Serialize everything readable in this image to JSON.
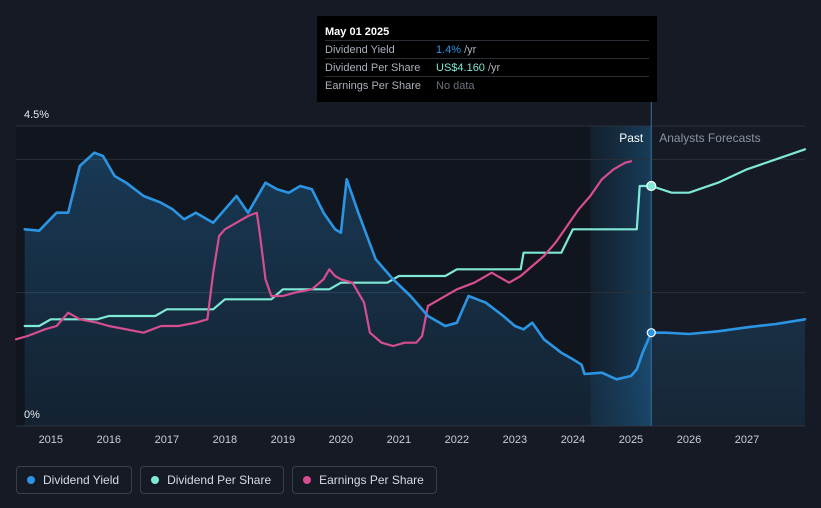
{
  "tooltip": {
    "date": "May 01 2025",
    "rows": [
      {
        "label": "Dividend Yield",
        "value": "1.4%",
        "unit": "/yr"
      },
      {
        "label": "Dividend Per Share",
        "value": "US$4.160",
        "unit": "/yr"
      },
      {
        "label": "Earnings Per Share",
        "value": "No data",
        "unit": ""
      }
    ]
  },
  "legend": [
    {
      "label": "Dividend Yield",
      "color": "#2b95e4"
    },
    {
      "label": "Dividend Per Share",
      "color": "#7fe8d6"
    },
    {
      "label": "Earnings Per Share",
      "color": "#d64e8f"
    }
  ],
  "chart_data": {
    "type": "line",
    "y_tick_labels": [
      "4.5%",
      "0%"
    ],
    "ylim": [
      0,
      4.5
    ],
    "xlim": [
      2014.4,
      2028.0
    ],
    "x_ticks": [
      2015,
      2016,
      2017,
      2018,
      2019,
      2020,
      2021,
      2022,
      2023,
      2024,
      2025,
      2026,
      2027
    ],
    "past_label": "Past",
    "forecast_label": "Analysts Forecasts",
    "forecast_start": 2025.35,
    "highlight_band": [
      2024.3,
      2025.35
    ],
    "colors": {
      "dividend_yield": "#2b95e4",
      "dividend_per_share": "#7fe8d6",
      "earnings_per_share": "#d64e8f"
    },
    "series": [
      {
        "name": "Dividend Yield",
        "key": "dividend_yield",
        "values": [
          [
            2014.55,
            2.95
          ],
          [
            2014.8,
            2.93
          ],
          [
            2015.1,
            3.2
          ],
          [
            2015.3,
            3.2
          ],
          [
            2015.5,
            3.9
          ],
          [
            2015.75,
            4.1
          ],
          [
            2015.9,
            4.05
          ],
          [
            2016.1,
            3.75
          ],
          [
            2016.3,
            3.65
          ],
          [
            2016.6,
            3.45
          ],
          [
            2016.9,
            3.35
          ],
          [
            2017.1,
            3.25
          ],
          [
            2017.3,
            3.1
          ],
          [
            2017.5,
            3.2
          ],
          [
            2017.8,
            3.05
          ],
          [
            2018.0,
            3.25
          ],
          [
            2018.2,
            3.45
          ],
          [
            2018.4,
            3.2
          ],
          [
            2018.7,
            3.65
          ],
          [
            2018.9,
            3.55
          ],
          [
            2019.1,
            3.5
          ],
          [
            2019.3,
            3.6
          ],
          [
            2019.5,
            3.55
          ],
          [
            2019.7,
            3.2
          ],
          [
            2019.9,
            2.95
          ],
          [
            2020.0,
            2.9
          ],
          [
            2020.1,
            3.7
          ],
          [
            2020.3,
            3.2
          ],
          [
            2020.6,
            2.5
          ],
          [
            2020.9,
            2.2
          ],
          [
            2021.2,
            1.95
          ],
          [
            2021.5,
            1.65
          ],
          [
            2021.8,
            1.5
          ],
          [
            2022.0,
            1.55
          ],
          [
            2022.2,
            1.95
          ],
          [
            2022.5,
            1.85
          ],
          [
            2022.8,
            1.65
          ],
          [
            2023.0,
            1.5
          ],
          [
            2023.15,
            1.45
          ],
          [
            2023.3,
            1.55
          ],
          [
            2023.5,
            1.3
          ],
          [
            2023.8,
            1.1
          ],
          [
            2024.0,
            1.0
          ],
          [
            2024.15,
            0.92
          ],
          [
            2024.2,
            0.78
          ],
          [
            2024.5,
            0.8
          ],
          [
            2024.75,
            0.7
          ],
          [
            2025.0,
            0.75
          ],
          [
            2025.1,
            0.85
          ],
          [
            2025.2,
            1.1
          ],
          [
            2025.35,
            1.4
          ],
          [
            2025.6,
            1.4
          ],
          [
            2026.0,
            1.38
          ],
          [
            2026.5,
            1.42
          ],
          [
            2027.0,
            1.48
          ],
          [
            2027.5,
            1.53
          ],
          [
            2028.0,
            1.6
          ]
        ]
      },
      {
        "name": "Dividend Per Share",
        "key": "dividend_per_share",
        "values": [
          [
            2014.55,
            1.5
          ],
          [
            2014.8,
            1.5
          ],
          [
            2015.0,
            1.6
          ],
          [
            2015.2,
            1.6
          ],
          [
            2015.5,
            1.6
          ],
          [
            2015.8,
            1.6
          ],
          [
            2016.0,
            1.65
          ],
          [
            2016.2,
            1.65
          ],
          [
            2016.5,
            1.65
          ],
          [
            2016.8,
            1.65
          ],
          [
            2017.0,
            1.75
          ],
          [
            2017.2,
            1.75
          ],
          [
            2017.6,
            1.75
          ],
          [
            2017.8,
            1.75
          ],
          [
            2018.0,
            1.9
          ],
          [
            2018.2,
            1.9
          ],
          [
            2018.6,
            1.9
          ],
          [
            2018.8,
            1.9
          ],
          [
            2019.0,
            2.05
          ],
          [
            2019.2,
            2.05
          ],
          [
            2019.6,
            2.05
          ],
          [
            2019.8,
            2.05
          ],
          [
            2020.0,
            2.15
          ],
          [
            2020.2,
            2.15
          ],
          [
            2020.6,
            2.15
          ],
          [
            2020.8,
            2.15
          ],
          [
            2021.0,
            2.25
          ],
          [
            2021.2,
            2.25
          ],
          [
            2021.6,
            2.25
          ],
          [
            2021.8,
            2.25
          ],
          [
            2022.0,
            2.35
          ],
          [
            2022.2,
            2.35
          ],
          [
            2022.6,
            2.35
          ],
          [
            2022.8,
            2.35
          ],
          [
            2023.1,
            2.35
          ],
          [
            2023.15,
            2.6
          ],
          [
            2023.4,
            2.6
          ],
          [
            2023.8,
            2.6
          ],
          [
            2024.0,
            2.95
          ],
          [
            2024.2,
            2.95
          ],
          [
            2024.6,
            2.95
          ],
          [
            2024.8,
            2.95
          ],
          [
            2025.1,
            2.95
          ],
          [
            2025.15,
            3.6
          ],
          [
            2025.35,
            3.6
          ],
          [
            2025.7,
            3.5
          ],
          [
            2026.0,
            3.5
          ],
          [
            2026.5,
            3.65
          ],
          [
            2027.0,
            3.85
          ],
          [
            2027.5,
            4.0
          ],
          [
            2028.0,
            4.15
          ]
        ]
      },
      {
        "name": "Earnings Per Share",
        "key": "earnings_per_share",
        "values": [
          [
            2014.4,
            1.3
          ],
          [
            2014.6,
            1.35
          ],
          [
            2014.9,
            1.45
          ],
          [
            2015.1,
            1.5
          ],
          [
            2015.3,
            1.7
          ],
          [
            2015.5,
            1.6
          ],
          [
            2015.8,
            1.55
          ],
          [
            2016.0,
            1.5
          ],
          [
            2016.3,
            1.45
          ],
          [
            2016.6,
            1.4
          ],
          [
            2016.9,
            1.5
          ],
          [
            2017.2,
            1.5
          ],
          [
            2017.5,
            1.55
          ],
          [
            2017.7,
            1.6
          ],
          [
            2017.8,
            2.3
          ],
          [
            2017.9,
            2.85
          ],
          [
            2018.0,
            2.95
          ],
          [
            2018.2,
            3.05
          ],
          [
            2018.4,
            3.15
          ],
          [
            2018.55,
            3.2
          ],
          [
            2018.6,
            2.9
          ],
          [
            2018.7,
            2.2
          ],
          [
            2018.8,
            1.95
          ],
          [
            2019.0,
            1.95
          ],
          [
            2019.2,
            2.0
          ],
          [
            2019.5,
            2.05
          ],
          [
            2019.7,
            2.2
          ],
          [
            2019.8,
            2.35
          ],
          [
            2019.9,
            2.25
          ],
          [
            2020.0,
            2.2
          ],
          [
            2020.2,
            2.15
          ],
          [
            2020.4,
            1.85
          ],
          [
            2020.5,
            1.4
          ],
          [
            2020.7,
            1.25
          ],
          [
            2020.9,
            1.2
          ],
          [
            2021.1,
            1.25
          ],
          [
            2021.3,
            1.25
          ],
          [
            2021.4,
            1.35
          ],
          [
            2021.5,
            1.8
          ],
          [
            2021.7,
            1.9
          ],
          [
            2021.9,
            2.0
          ],
          [
            2022.0,
            2.05
          ],
          [
            2022.3,
            2.15
          ],
          [
            2022.6,
            2.3
          ],
          [
            2022.9,
            2.15
          ],
          [
            2023.1,
            2.25
          ],
          [
            2023.3,
            2.4
          ],
          [
            2023.5,
            2.55
          ],
          [
            2023.7,
            2.75
          ],
          [
            2023.9,
            3.0
          ],
          [
            2024.1,
            3.25
          ],
          [
            2024.3,
            3.45
          ],
          [
            2024.5,
            3.7
          ],
          [
            2024.7,
            3.85
          ],
          [
            2024.9,
            3.95
          ],
          [
            2025.0,
            3.97
          ]
        ]
      }
    ]
  }
}
